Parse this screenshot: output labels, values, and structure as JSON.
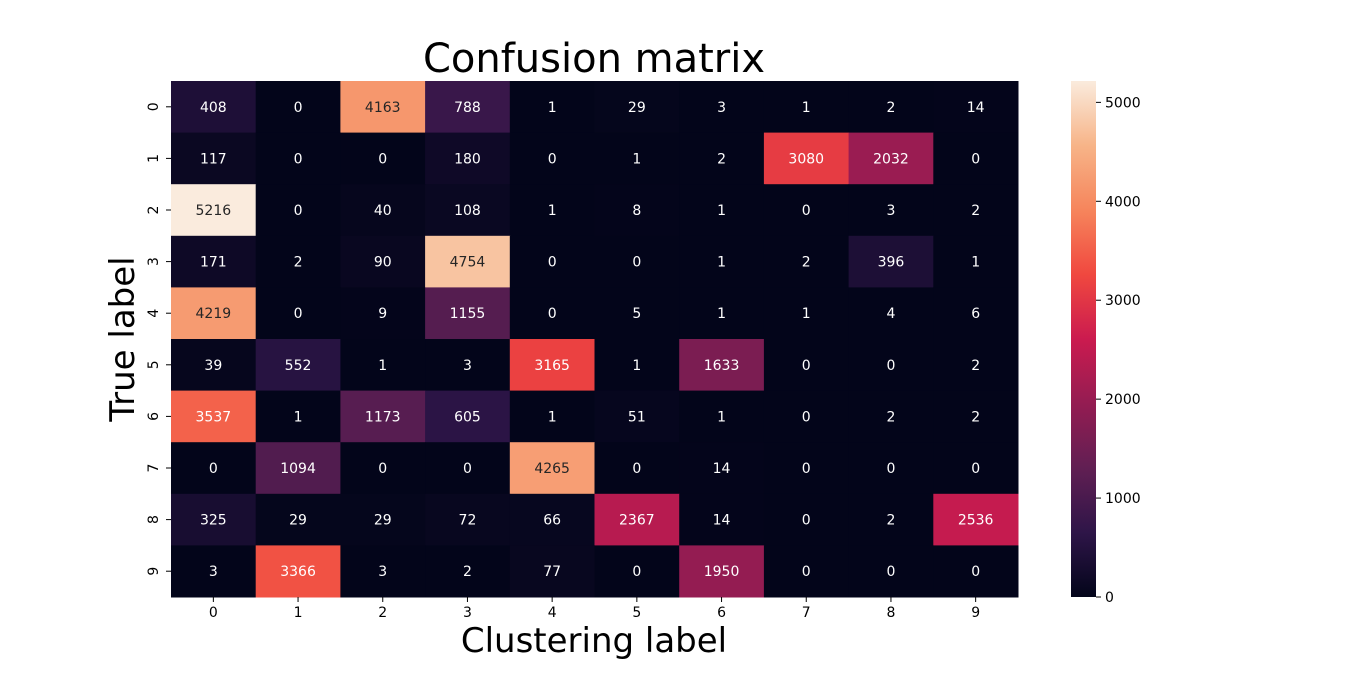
{
  "chart_data": {
    "type": "heatmap",
    "title": "Confusion matrix",
    "xlabel": "Clustering label",
    "ylabel": "True label",
    "x_categories": [
      "0",
      "1",
      "2",
      "3",
      "4",
      "5",
      "6",
      "7",
      "8",
      "9"
    ],
    "y_categories": [
      "0",
      "1",
      "2",
      "3",
      "4",
      "5",
      "6",
      "7",
      "8",
      "9"
    ],
    "values": [
      [
        408,
        0,
        4163,
        788,
        1,
        29,
        3,
        1,
        2,
        14
      ],
      [
        117,
        0,
        0,
        180,
        0,
        1,
        2,
        3080,
        2032,
        0
      ],
      [
        5216,
        0,
        40,
        108,
        1,
        8,
        1,
        0,
        3,
        2
      ],
      [
        171,
        2,
        90,
        4754,
        0,
        0,
        1,
        2,
        396,
        1
      ],
      [
        4219,
        0,
        9,
        1155,
        0,
        5,
        1,
        1,
        4,
        6
      ],
      [
        39,
        552,
        1,
        3,
        3165,
        1,
        1633,
        0,
        0,
        2
      ],
      [
        3537,
        1,
        1173,
        605,
        1,
        51,
        1,
        0,
        2,
        2
      ],
      [
        0,
        1094,
        0,
        0,
        4265,
        0,
        14,
        0,
        0,
        0
      ],
      [
        325,
        29,
        29,
        72,
        66,
        2367,
        14,
        0,
        2,
        2536
      ],
      [
        3,
        3366,
        3,
        2,
        77,
        0,
        1950,
        0,
        0,
        0
      ]
    ],
    "colorbar": {
      "min": 0,
      "max": 5216,
      "ticks": [
        0,
        1000,
        2000,
        3000,
        4000,
        5000
      ],
      "colormap": "rocket",
      "stops": [
        "#03051a",
        "#2e1548",
        "#611f53",
        "#941c52",
        "#cb1b4f",
        "#f0483f",
        "#f6855c",
        "#f7b488",
        "#faebdd"
      ]
    }
  }
}
